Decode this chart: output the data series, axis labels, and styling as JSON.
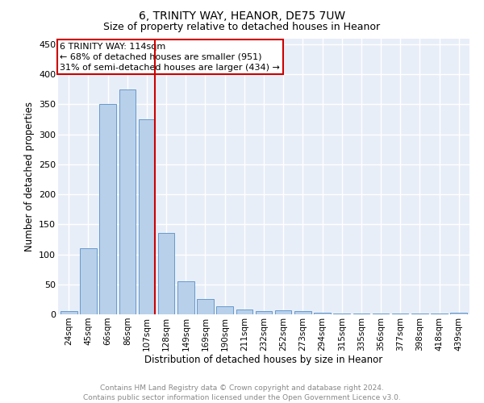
{
  "title": "6, TRINITY WAY, HEANOR, DE75 7UW",
  "subtitle": "Size of property relative to detached houses in Heanor",
  "xlabel": "Distribution of detached houses by size in Heanor",
  "ylabel": "Number of detached properties",
  "footer_line1": "Contains HM Land Registry data © Crown copyright and database right 2024.",
  "footer_line2": "Contains public sector information licensed under the Open Government Licence v3.0.",
  "categories": [
    "24sqm",
    "45sqm",
    "66sqm",
    "86sqm",
    "107sqm",
    "128sqm",
    "149sqm",
    "169sqm",
    "190sqm",
    "211sqm",
    "232sqm",
    "252sqm",
    "273sqm",
    "294sqm",
    "315sqm",
    "335sqm",
    "356sqm",
    "377sqm",
    "398sqm",
    "418sqm",
    "439sqm"
  ],
  "values": [
    5,
    110,
    350,
    375,
    325,
    135,
    55,
    25,
    13,
    8,
    5,
    7,
    6,
    3,
    2,
    1,
    1,
    1,
    1,
    1,
    3
  ],
  "bar_color": "#b8d0ea",
  "bar_edge_color": "#6699cc",
  "background_color": "#e8eef8",
  "grid_color": "#ffffff",
  "annotation_line1": "6 TRINITY WAY: 114sqm",
  "annotation_line2": "← 68% of detached houses are smaller (951)",
  "annotation_line3": "31% of semi-detached houses are larger (434) →",
  "annotation_box_color": "#ffffff",
  "annotation_box_edge": "#cc0000",
  "vline_color": "#cc0000",
  "vline_x": 4.43,
  "ylim": [
    0,
    460
  ],
  "title_fontsize": 10,
  "subtitle_fontsize": 9,
  "xlabel_fontsize": 8.5,
  "ylabel_fontsize": 8.5,
  "tick_fontsize": 7.5,
  "annotation_fontsize": 8,
  "footer_fontsize": 6.5
}
